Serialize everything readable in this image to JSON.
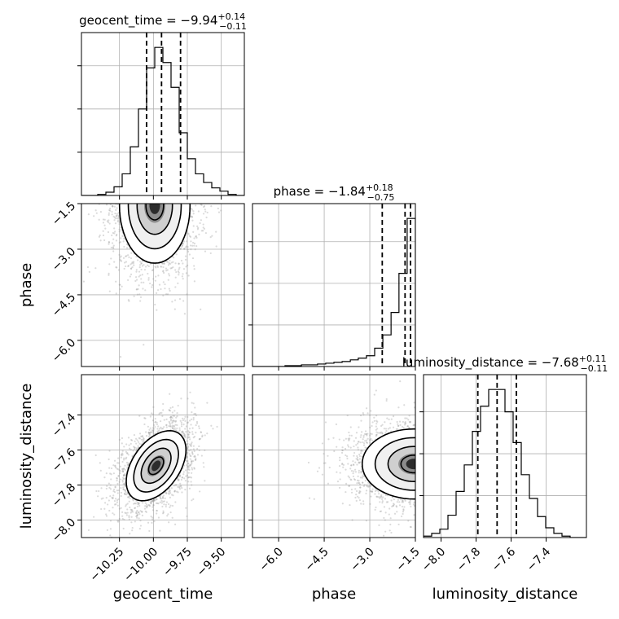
{
  "chart_data": {
    "type": "corner",
    "parameters": [
      "geocent_time",
      "phase",
      "luminosity_distance"
    ],
    "titles": [
      {
        "prefix": "geocent_time = ",
        "median": "−9.94",
        "plus": "+0.14",
        "minus": "−0.11"
      },
      {
        "prefix": "phase = ",
        "median": "−1.84",
        "plus": "+0.18",
        "minus": "−0.75"
      },
      {
        "prefix": "luminosity_distance = ",
        "median": "−7.68",
        "plus": "+0.11",
        "minus": "−0.11"
      }
    ],
    "axis_ranges": {
      "geocent_time": [
        -10.53,
        -9.33
      ],
      "phase": [
        -6.86,
        -1.5
      ],
      "luminosity_distance": [
        -8.1,
        -7.17
      ]
    },
    "ticks": {
      "geocent_time": {
        "values": [
          -10.25,
          -10.0,
          -9.75,
          -9.5
        ],
        "labels": [
          "−10.25",
          "−10.00",
          "−9.75",
          "−9.50"
        ]
      },
      "phase": {
        "values": [
          -6.0,
          -4.5,
          -3.0,
          -1.5
        ],
        "labels": [
          "−6.0",
          "−4.5",
          "−3.0",
          "−1.5"
        ]
      },
      "luminosity_distance": {
        "values": [
          -8.0,
          -7.8,
          -7.6,
          -7.4
        ],
        "labels": [
          "−8.0",
          "−7.8",
          "−7.6",
          "−7.4"
        ]
      }
    },
    "quantiles": {
      "geocent_time": [
        -10.05,
        -9.94,
        -9.8
      ],
      "phase": [
        -2.59,
        -1.84,
        -1.66
      ],
      "luminosity_distance": [
        -7.79,
        -7.68,
        -7.57
      ]
    },
    "histograms": {
      "geocent_time": {
        "edges": [
          -10.53,
          -10.47,
          -10.41,
          -10.35,
          -10.29,
          -10.23,
          -10.17,
          -10.11,
          -10.05,
          -9.99,
          -9.93,
          -9.87,
          -9.81,
          -9.75,
          -9.69,
          -9.63,
          -9.57,
          -9.51,
          -9.45,
          -9.39,
          -9.33
        ],
        "counts": [
          0,
          0,
          1,
          3,
          8,
          20,
          45,
          80,
          118,
          137,
          123,
          100,
          58,
          34,
          20,
          12,
          7,
          4,
          1,
          0
        ]
      },
      "phase": {
        "edges": [
          -6.86,
          -6.59,
          -6.32,
          -6.06,
          -5.79,
          -5.52,
          -5.25,
          -4.98,
          -4.72,
          -4.45,
          -4.18,
          -3.91,
          -3.64,
          -3.38,
          -3.11,
          -2.84,
          -2.57,
          -2.3,
          -2.04,
          -1.77,
          -1.5
        ],
        "counts": [
          0,
          0,
          0,
          0,
          1,
          1,
          2,
          2,
          3,
          4,
          5,
          6,
          8,
          10,
          13,
          22,
          38,
          65,
          112,
          178
        ]
      },
      "luminosity_distance": {
        "edges": [
          -8.1,
          -8.0535,
          -8.007,
          -7.9605,
          -7.914,
          -7.8675,
          -7.821,
          -7.7745,
          -7.728,
          -7.6815,
          -7.635,
          -7.5885,
          -7.542,
          -7.4955,
          -7.449,
          -7.4025,
          -7.356,
          -7.3095,
          -7.263,
          -7.2165,
          -7.17
        ],
        "counts": [
          1,
          3,
          6,
          16,
          33,
          52,
          76,
          94,
          106,
          106,
          90,
          68,
          45,
          28,
          15,
          7,
          3,
          1,
          0,
          0
        ]
      }
    },
    "pairs": [
      {
        "x": "geocent_time",
        "y": "phase",
        "peak": [
          -9.99,
          -1.56
        ],
        "sigma": [
          0.13,
          0.95
        ],
        "rho": 0.0
      },
      {
        "x": "geocent_time",
        "y": "luminosity_distance",
        "peak": [
          -9.98,
          -7.69
        ],
        "sigma": [
          0.11,
          0.1
        ],
        "rho": 0.45
      },
      {
        "x": "phase",
        "y": "luminosity_distance",
        "peak": [
          -1.55,
          -7.68
        ],
        "sigma": [
          0.85,
          0.1
        ],
        "rho": 0.0
      }
    ],
    "grid": true,
    "legend": "none"
  }
}
